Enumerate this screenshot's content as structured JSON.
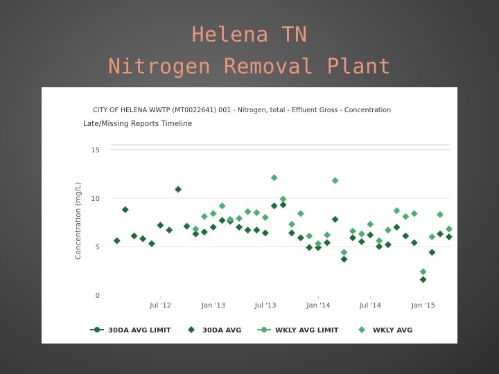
{
  "slide": {
    "title_line1": "Helena TN",
    "title_line2": "Nitrogen Removal Plant"
  },
  "colors": {
    "title": "#e8967a",
    "dark_green": "#1e6b3c",
    "light_green": "#4caf72",
    "grid": "#e6e6e6"
  },
  "chart_data": {
    "type": "scatter",
    "title": "CITY OF HELENA WWTP (MT0022641) 001 - Nitrogen, total - Effluent Gross - Concentration",
    "subtitle": "Late/Missing Reports Timeline",
    "ylabel": "Concentration (mg/L)",
    "xlabel": "",
    "ylim": [
      0,
      16
    ],
    "xlim": [
      "2012-01-10",
      "2015-04-05"
    ],
    "y_ticks": [
      0,
      5,
      10,
      15
    ],
    "x_ticks": [
      {
        "label": "Jul '12",
        "date": "2012-07-01"
      },
      {
        "label": "Jan '13",
        "date": "2013-01-01"
      },
      {
        "label": "Jul '13",
        "date": "2013-07-01"
      },
      {
        "label": "Jan '14",
        "date": "2014-01-01"
      },
      {
        "label": "Jul '14",
        "date": "2014-07-01"
      },
      {
        "label": "Jan '15",
        "date": "2015-01-01"
      }
    ],
    "horizontal_lines": [
      15,
      15.5
    ],
    "legend_position": "bottom",
    "series": [
      {
        "name": "30DA AVG",
        "color": "#1e6b3c",
        "marker": "diamond",
        "points": [
          {
            "x": "2012-01-31",
            "y": 5.6
          },
          {
            "x": "2012-02-29",
            "y": 8.8
          },
          {
            "x": "2012-03-31",
            "y": 6.1
          },
          {
            "x": "2012-04-30",
            "y": 5.8
          },
          {
            "x": "2012-05-31",
            "y": 5.3
          },
          {
            "x": "2012-06-30",
            "y": 7.2
          },
          {
            "x": "2012-07-31",
            "y": 6.7
          },
          {
            "x": "2012-08-31",
            "y": 10.9
          },
          {
            "x": "2012-09-30",
            "y": 7.1
          },
          {
            "x": "2012-10-31",
            "y": 6.3
          },
          {
            "x": "2012-11-30",
            "y": 6.5
          },
          {
            "x": "2012-12-31",
            "y": 7.0
          },
          {
            "x": "2013-01-31",
            "y": 7.7
          },
          {
            "x": "2013-02-28",
            "y": 7.6
          },
          {
            "x": "2013-03-31",
            "y": 7.0
          },
          {
            "x": "2013-04-30",
            "y": 6.7
          },
          {
            "x": "2013-05-31",
            "y": 6.7
          },
          {
            "x": "2013-06-30",
            "y": 6.4
          },
          {
            "x": "2013-07-31",
            "y": 9.2
          },
          {
            "x": "2013-08-31",
            "y": 9.3
          },
          {
            "x": "2013-09-30",
            "y": 6.4
          },
          {
            "x": "2013-10-31",
            "y": 5.9
          },
          {
            "x": "2013-11-30",
            "y": 4.9
          },
          {
            "x": "2013-12-31",
            "y": 4.9
          },
          {
            "x": "2014-01-31",
            "y": 5.4
          },
          {
            "x": "2014-02-28",
            "y": 7.8
          },
          {
            "x": "2014-03-31",
            "y": 3.7
          },
          {
            "x": "2014-04-30",
            "y": 5.9
          },
          {
            "x": "2014-05-31",
            "y": 5.5
          },
          {
            "x": "2014-06-30",
            "y": 6.2
          },
          {
            "x": "2014-07-31",
            "y": 5.0
          },
          {
            "x": "2014-08-31",
            "y": 5.2
          },
          {
            "x": "2014-09-30",
            "y": 7.0
          },
          {
            "x": "2014-10-31",
            "y": 6.1
          },
          {
            "x": "2014-11-30",
            "y": 5.4
          },
          {
            "x": "2014-12-31",
            "y": 1.6
          },
          {
            "x": "2015-01-31",
            "y": 4.4
          },
          {
            "x": "2015-02-28",
            "y": 6.3
          },
          {
            "x": "2015-03-31",
            "y": 6.0
          }
        ]
      },
      {
        "name": "WKLY AVG",
        "color": "#4caf72",
        "marker": "diamond",
        "points": [
          {
            "x": "2012-10-31",
            "y": 6.8
          },
          {
            "x": "2012-11-30",
            "y": 8.1
          },
          {
            "x": "2012-12-31",
            "y": 8.4
          },
          {
            "x": "2013-01-31",
            "y": 9.2
          },
          {
            "x": "2013-02-28",
            "y": 7.8
          },
          {
            "x": "2013-03-31",
            "y": 7.9
          },
          {
            "x": "2013-04-30",
            "y": 8.6
          },
          {
            "x": "2013-05-31",
            "y": 8.5
          },
          {
            "x": "2013-06-30",
            "y": 8.0
          },
          {
            "x": "2013-07-31",
            "y": 12.1
          },
          {
            "x": "2013-08-31",
            "y": 9.9
          },
          {
            "x": "2013-09-30",
            "y": 7.3
          },
          {
            "x": "2013-10-31",
            "y": 8.4
          },
          {
            "x": "2013-11-30",
            "y": 6.1
          },
          {
            "x": "2013-12-31",
            "y": 5.3
          },
          {
            "x": "2014-01-31",
            "y": 6.2
          },
          {
            "x": "2014-02-28",
            "y": 11.8
          },
          {
            "x": "2014-03-31",
            "y": 4.4
          },
          {
            "x": "2014-04-30",
            "y": 6.6
          },
          {
            "x": "2014-05-31",
            "y": 6.3
          },
          {
            "x": "2014-06-30",
            "y": 7.3
          },
          {
            "x": "2014-07-31",
            "y": 5.6
          },
          {
            "x": "2014-08-31",
            "y": 6.7
          },
          {
            "x": "2014-09-30",
            "y": 8.7
          },
          {
            "x": "2014-10-31",
            "y": 8.1
          },
          {
            "x": "2014-11-30",
            "y": 8.4
          },
          {
            "x": "2014-12-31",
            "y": 2.4
          },
          {
            "x": "2015-01-31",
            "y": 6.0
          },
          {
            "x": "2015-02-28",
            "y": 8.3
          },
          {
            "x": "2015-03-31",
            "y": 6.8
          }
        ]
      }
    ],
    "legend": [
      {
        "label": "30DA AVG LIMIT",
        "color": "#1e6b3c",
        "marker": "circle-line"
      },
      {
        "label": "30DA AVG",
        "color": "#1e6b3c",
        "marker": "diamond"
      },
      {
        "label": "WKLY AVG LIMIT",
        "color": "#4caf72",
        "marker": "circle-line"
      },
      {
        "label": "WKLY AVG",
        "color": "#4caf72",
        "marker": "diamond"
      }
    ]
  }
}
